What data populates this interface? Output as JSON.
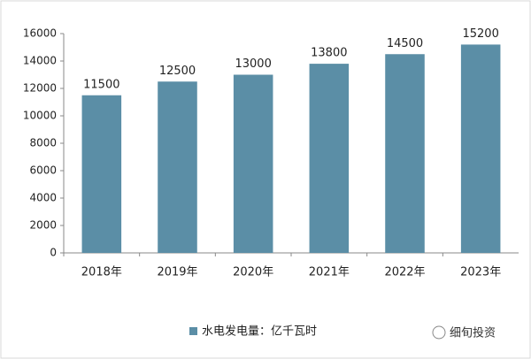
{
  "chart_data": {
    "type": "bar",
    "categories": [
      "2018年",
      "2019年",
      "2020年",
      "2021年",
      "2022年",
      "2023年"
    ],
    "series": [
      {
        "name": "水电发电量：亿千瓦时",
        "color": "#5b8ea6",
        "values": [
          11500,
          12500,
          13000,
          13800,
          14500,
          15200
        ]
      }
    ],
    "ylim": [
      0,
      16000
    ],
    "yticks": [
      0,
      2000,
      4000,
      6000,
      8000,
      10000,
      12000,
      14000,
      16000
    ],
    "grid": false,
    "legend": "bottom",
    "data_labels": true,
    "annotation": "细旬投资"
  }
}
